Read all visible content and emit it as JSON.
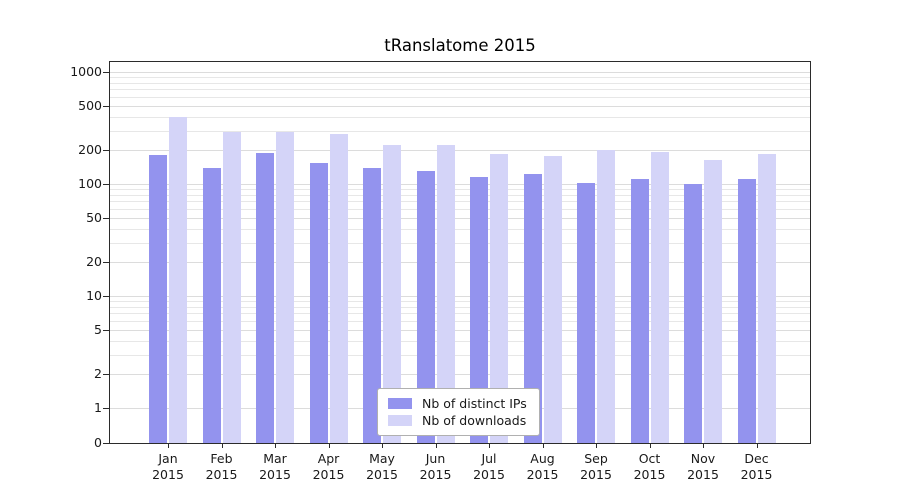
{
  "title": "tRanslatome 2015",
  "chart_data": {
    "type": "bar",
    "title": "tRanslatome 2015",
    "scale": "log",
    "grid": "horizontal",
    "legend_position": "bottom-center",
    "xlabel": "",
    "ylabel": "",
    "ylim": [
      0,
      1000
    ],
    "yticks": [
      0,
      1,
      2,
      5,
      10,
      20,
      50,
      100,
      200,
      500,
      1000
    ],
    "year": "2015",
    "categories": [
      "Jan",
      "Feb",
      "Mar",
      "Apr",
      "May",
      "Jun",
      "Jul",
      "Aug",
      "Sep",
      "Oct",
      "Nov",
      "Dec"
    ],
    "series": [
      {
        "name": "Nb of distinct IPs",
        "color": "#9393ee",
        "values": [
          180,
          140,
          190,
          155,
          140,
          130,
          115,
          122,
          103,
          110,
          100,
          112
        ]
      },
      {
        "name": "Nb of downloads",
        "color": "#d4d4f8",
        "values": [
          400,
          290,
          290,
          280,
          225,
          225,
          185,
          178,
          200,
          195,
          165,
          185
        ]
      }
    ]
  }
}
